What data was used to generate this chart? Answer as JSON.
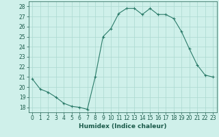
{
  "x": [
    0,
    1,
    2,
    3,
    4,
    5,
    6,
    7,
    8,
    9,
    10,
    11,
    12,
    13,
    14,
    15,
    16,
    17,
    18,
    19,
    20,
    21,
    22,
    23
  ],
  "y": [
    20.8,
    19.8,
    19.5,
    19.0,
    18.4,
    18.1,
    18.0,
    17.8,
    21.0,
    25.0,
    25.8,
    27.3,
    27.8,
    27.8,
    27.2,
    27.8,
    27.2,
    27.2,
    26.8,
    25.5,
    23.8,
    22.2,
    21.2,
    21.0
  ],
  "xlim": [
    -0.5,
    23.5
  ],
  "ylim": [
    17.5,
    28.5
  ],
  "yticks": [
    18,
    19,
    20,
    21,
    22,
    23,
    24,
    25,
    26,
    27,
    28
  ],
  "xticks": [
    0,
    1,
    2,
    3,
    4,
    5,
    6,
    7,
    8,
    9,
    10,
    11,
    12,
    13,
    14,
    15,
    16,
    17,
    18,
    19,
    20,
    21,
    22,
    23
  ],
  "xlabel": "Humidex (Indice chaleur)",
  "line_color": "#2a7a68",
  "marker": "+",
  "bg_color": "#cff0ea",
  "grid_color": "#aad8d0",
  "tick_color": "#1a5a4a",
  "label_color": "#1a5a4a"
}
